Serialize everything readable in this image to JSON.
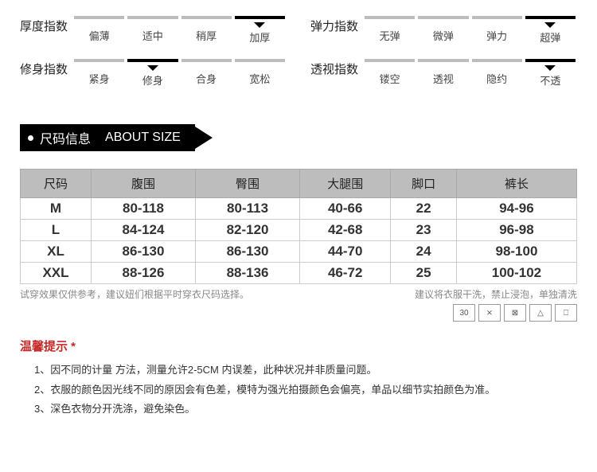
{
  "indices": {
    "thickness": {
      "title": "厚度指数",
      "options": [
        "偏薄",
        "适中",
        "稍厚",
        "加厚"
      ],
      "selected": 3
    },
    "elasticity": {
      "title": "弹力指数",
      "options": [
        "无弹",
        "微弹",
        "弹力",
        "超弹"
      ],
      "selected": 3
    },
    "fit": {
      "title": "修身指数",
      "options": [
        "紧身",
        "修身",
        "合身",
        "宽松"
      ],
      "selected": 1
    },
    "opacity": {
      "title": "透视指数",
      "options": [
        "镂空",
        "透视",
        "隐约",
        "不透"
      ],
      "selected": 3
    }
  },
  "section_header": {
    "cn": "尺码信息",
    "en": "ABOUT SIZE"
  },
  "size_table": {
    "columns": [
      "尺码",
      "腹围",
      "臀围",
      "大腿围",
      "脚口",
      "裤长"
    ],
    "rows": [
      [
        "M",
        "80-118",
        "80-113",
        "40-66",
        "22",
        "94-96"
      ],
      [
        "L",
        "84-124",
        "82-120",
        "42-68",
        "23",
        "96-98"
      ],
      [
        "XL",
        "86-130",
        "86-130",
        "44-70",
        "24",
        "98-100"
      ],
      [
        "XXL",
        "88-126",
        "88-136",
        "46-72",
        "25",
        "100-102"
      ]
    ]
  },
  "notes": {
    "left": "试穿效果仅供参考，建议妞们根据平时穿衣尺码选择。",
    "right": "建议将衣服干洗，禁止浸泡，单独清洗"
  },
  "warm_tip_title": "温馨提示",
  "tips": [
    "1、因不同的计量 方法，测量允许2-5CM 内误差，此种状况并非质量问题。",
    "2、衣服的颜色因光线不同的原因会有色差，模特为强光拍摄颜色会偏亮，单品以细节实拍颜色为准。",
    "3、深色衣物分开洗涤，避免染色。"
  ],
  "care_icons": [
    "30",
    "⨯",
    "⊠",
    "△",
    "⎕"
  ],
  "colors": {
    "bar_inactive": "#bdbdbd",
    "bar_active": "#000000",
    "header_bg": "#bdbdbd",
    "warm_red": "#c62828"
  }
}
